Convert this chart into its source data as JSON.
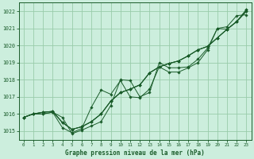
{
  "xlabel": "Graphe pression niveau de la mer (hPa)",
  "background_color": "#cceedd",
  "grid_color": "#99ccaa",
  "line_color": "#1a5c2a",
  "ylim": [
    1014.5,
    1022.5
  ],
  "xlim": [
    -0.5,
    23.5
  ],
  "xticks": [
    0,
    1,
    2,
    3,
    4,
    5,
    6,
    7,
    8,
    9,
    10,
    11,
    12,
    13,
    14,
    15,
    16,
    17,
    18,
    19,
    20,
    21,
    22,
    23
  ],
  "yticks": [
    1015,
    1016,
    1017,
    1018,
    1019,
    1020,
    1021,
    1022
  ],
  "series": [
    [
      1015.8,
      1016.0,
      1016.0,
      1016.1,
      1015.8,
      1014.85,
      1015.05,
      1015.3,
      1015.55,
      1016.5,
      1018.0,
      1017.95,
      1017.0,
      1017.25,
      1019.0,
      1018.7,
      1018.7,
      1018.75,
      1019.2,
      1019.85,
      1021.0,
      1021.1,
      1021.75,
      1021.8
    ],
    [
      1015.8,
      1016.0,
      1016.1,
      1016.15,
      1015.5,
      1015.1,
      1015.25,
      1015.55,
      1016.0,
      1016.75,
      1017.25,
      1017.45,
      1017.7,
      1018.4,
      1018.75,
      1018.95,
      1019.1,
      1019.4,
      1019.75,
      1019.95,
      1020.45,
      1020.95,
      1021.4,
      1022.0
    ],
    [
      1015.8,
      1016.0,
      1016.1,
      1016.15,
      1015.5,
      1015.1,
      1015.25,
      1015.55,
      1016.0,
      1016.75,
      1017.25,
      1017.45,
      1017.7,
      1018.4,
      1018.75,
      1018.95,
      1019.1,
      1019.4,
      1019.75,
      1019.95,
      1020.45,
      1020.95,
      1021.4,
      1022.1
    ],
    [
      1015.8,
      1016.0,
      1016.0,
      1016.1,
      1015.2,
      1014.9,
      1015.15,
      1016.4,
      1017.4,
      1017.15,
      1017.95,
      1017.0,
      1016.95,
      1017.45,
      1018.75,
      1018.45,
      1018.45,
      1018.7,
      1019.0,
      1019.75,
      1021.0,
      1020.95,
      1021.4,
      1022.0
    ],
    [
      1015.8,
      1016.0,
      1016.1,
      1016.15,
      1015.5,
      1015.1,
      1015.25,
      1015.55,
      1016.0,
      1016.75,
      1017.25,
      1017.45,
      1017.7,
      1018.4,
      1018.75,
      1018.95,
      1019.1,
      1019.4,
      1019.75,
      1019.95,
      1020.45,
      1020.95,
      1021.4,
      1022.1
    ]
  ]
}
